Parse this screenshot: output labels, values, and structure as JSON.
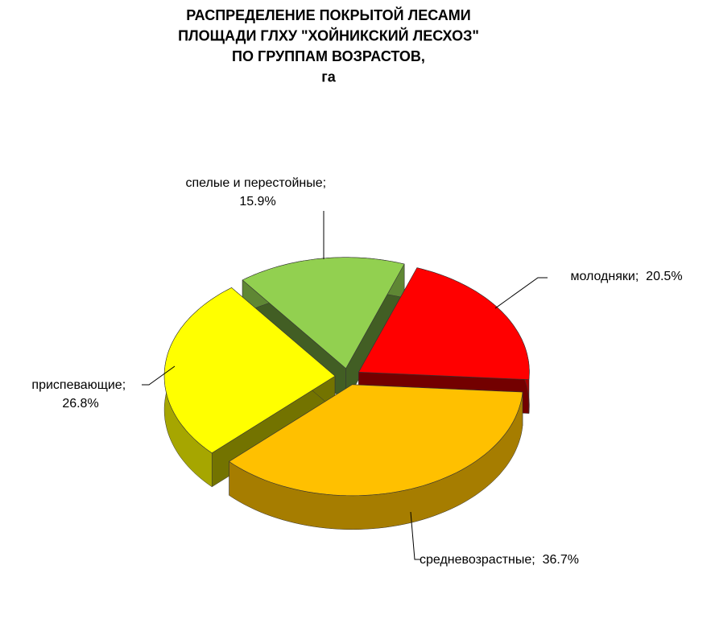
{
  "chart_data": {
    "type": "pie3d",
    "title": [
      "РАСПРЕДЕЛЕНИЕ ПОКРЫТОЙ ЛЕСАМИ",
      "ПЛОЩАДИ ГЛХУ \"ХОЙНИКСКИЙ ЛЕСХОЗ\"",
      "ПО ГРУППАМ ВОЗРАСТОВ,",
      "га"
    ],
    "categories": [
      "молодняки",
      "средневозрастные",
      "приспевающие",
      "спелые и перестойные"
    ],
    "values": [
      20.5,
      36.7,
      26.8,
      15.9
    ],
    "value_labels": [
      "20.5%",
      "36.7%",
      "26.8%",
      "15.9%"
    ],
    "label_separator": ";",
    "colors": [
      "#ff0000",
      "#ffc000",
      "#ffff00",
      "#92d050"
    ]
  }
}
